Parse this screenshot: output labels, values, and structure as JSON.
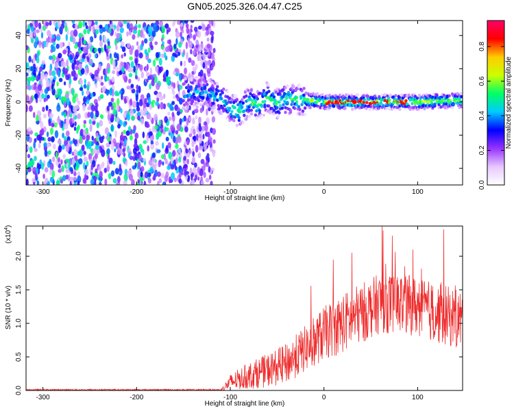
{
  "figure_title": "GN05.2025.326.04.47.C25",
  "chart_data": [
    {
      "type": "heatmap",
      "title": "GN05.2025.326.04.47.C25",
      "xlabel": "Height of straight line (km)",
      "ylabel": "Frequency (Hz)",
      "xlim": [
        -318,
        148
      ],
      "ylim": [
        -50,
        49
      ],
      "xticks": [
        -300,
        -200,
        -100,
        0,
        100
      ],
      "yticks": [
        -40,
        -20,
        0,
        20,
        40
      ],
      "colorbar": {
        "label": "Normalized spectral amplitude",
        "range": [
          0,
          0.95
        ],
        "ticks": [
          0.0,
          0.2,
          0.4,
          0.6,
          0.8
        ],
        "colormap": [
          "#ffffff",
          "#e6c8ff",
          "#9933ff",
          "#0000ff",
          "#00ccff",
          "#00ff66",
          "#ccff00",
          "#ffcc00",
          "#ff0000",
          "#ff0066"
        ]
      },
      "features": {
        "noise_region_km": [
          -318,
          -125
        ],
        "signal_start_km": -150,
        "signal_center_trace": [
          {
            "x": -150,
            "y": 5
          },
          {
            "x": -130,
            "y": 6
          },
          {
            "x": -110,
            "y": 2
          },
          {
            "x": -100,
            "y": -4
          },
          {
            "x": -90,
            "y": -6
          },
          {
            "x": -80,
            "y": 0
          },
          {
            "x": -70,
            "y": -2
          },
          {
            "x": -60,
            "y": 3
          },
          {
            "x": -50,
            "y": -1
          },
          {
            "x": -40,
            "y": 2
          },
          {
            "x": -20,
            "y": 1
          },
          {
            "x": 0,
            "y": 0
          },
          {
            "x": 50,
            "y": 0
          },
          {
            "x": 100,
            "y": 0
          },
          {
            "x": 148,
            "y": 1
          }
        ]
      }
    },
    {
      "type": "line",
      "xlabel": "Height of straight line (km)",
      "ylabel": "SNR (10 * v/v)",
      "y_scale_label": "(x10",
      "y_scale_exponent": "4",
      "y_scale_suffix": ")",
      "xlim": [
        -318,
        148
      ],
      "ylim": [
        0,
        2.45
      ],
      "xticks": [
        -300,
        -200,
        -100,
        0,
        100
      ],
      "yticks": [
        0.0,
        0.5,
        1.0,
        1.5,
        2.0
      ],
      "series": [
        {
          "name": "SNR",
          "color": "#ee2a2a",
          "envelope": [
            {
              "x": -318,
              "mean": 0.01,
              "spread": 0.01
            },
            {
              "x": -110,
              "mean": 0.01,
              "spread": 0.01
            },
            {
              "x": -100,
              "mean": 0.12,
              "spread": 0.12
            },
            {
              "x": -80,
              "mean": 0.22,
              "spread": 0.2
            },
            {
              "x": -60,
              "mean": 0.3,
              "spread": 0.25
            },
            {
              "x": -40,
              "mean": 0.4,
              "spread": 0.3
            },
            {
              "x": -20,
              "mean": 0.62,
              "spread": 0.35
            },
            {
              "x": 0,
              "mean": 0.85,
              "spread": 0.4
            },
            {
              "x": 20,
              "mean": 1.0,
              "spread": 0.45
            },
            {
              "x": 40,
              "mean": 1.15,
              "spread": 0.45
            },
            {
              "x": 60,
              "mean": 1.3,
              "spread": 0.45
            },
            {
              "x": 80,
              "mean": 1.3,
              "spread": 0.45
            },
            {
              "x": 100,
              "mean": 1.25,
              "spread": 0.45
            },
            {
              "x": 120,
              "mean": 1.15,
              "spread": 0.45
            },
            {
              "x": 148,
              "mean": 1.05,
              "spread": 0.45
            }
          ],
          "peaks": [
            {
              "x": 62,
              "y": 2.45
            },
            {
              "x": 128,
              "y": 2.4
            },
            {
              "x": 95,
              "y": 2.1
            },
            {
              "x": 30,
              "y": 2.05
            },
            {
              "x": 10,
              "y": 1.95
            }
          ]
        }
      ]
    }
  ]
}
